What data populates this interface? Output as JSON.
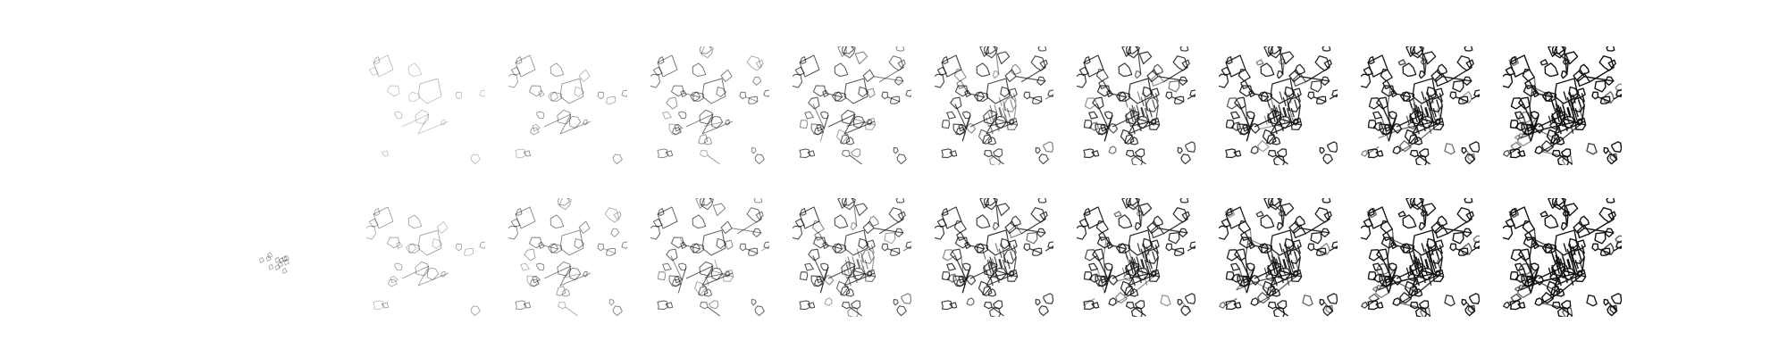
{
  "figure": {
    "rows": 2,
    "columns": 10,
    "ink_color": "#111111",
    "background_color": "#ffffff",
    "row_steps": [
      [
        0.0,
        0.18,
        0.34,
        0.48,
        0.6,
        0.7,
        0.79,
        0.87,
        0.94,
        1.0
      ],
      [
        0.1,
        0.28,
        0.42,
        0.55,
        0.66,
        0.76,
        0.84,
        0.91,
        0.97,
        1.0
      ]
    ]
  }
}
